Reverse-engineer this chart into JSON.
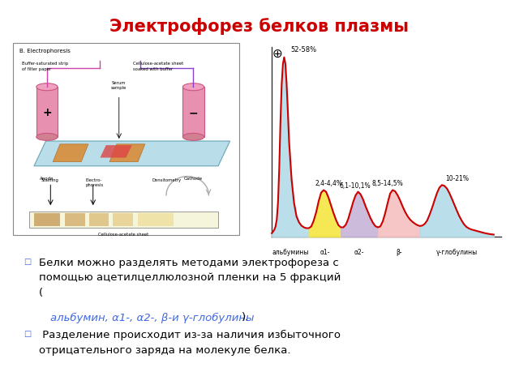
{
  "title": "Электрофорез белков плазмы",
  "title_color": "#cc0000",
  "background_color": "#ffffff",
  "graph": {
    "plus_symbol": "⊕",
    "peak_label": "52-58%",
    "labels": [
      "2,4-4,4%",
      "6,1-10,1%",
      "8,5-14,5%",
      "10-21%"
    ],
    "x_labels": [
      "альбумины",
      "α1-",
      "α2-",
      "β-",
      "γ-глобулины"
    ],
    "fill_colors": [
      "#b3dce8",
      "#f5e642",
      "#c8b4d8",
      "#f5c0c0",
      "#b3dce8"
    ],
    "line_color": "#cc0000",
    "axis_color": "#555555",
    "regions": [
      [
        0.5,
        2.0,
        "#b3dce8"
      ],
      [
        2.0,
        3.3,
        "#f5e642"
      ],
      [
        3.3,
        4.8,
        "#c8b4d8"
      ],
      [
        4.8,
        6.5,
        "#f5c0c0"
      ],
      [
        6.5,
        9.5,
        "#b3dce8"
      ]
    ]
  },
  "bullet_color": "#4169e1",
  "bullet_char": "□",
  "text1_line1": "Белки можно разделять методами электрофореза с",
  "text1_line2": "помощью ацетилцеллюлозной пленки на 5 фракций",
  "text1_colored": "альбумин, α1-, α2-, β-и γ-глобулины",
  "text2_line1": "Разделение происходит из-за наличия избыточного",
  "text2_line2": "отрицательного заряда на молекуле белка."
}
